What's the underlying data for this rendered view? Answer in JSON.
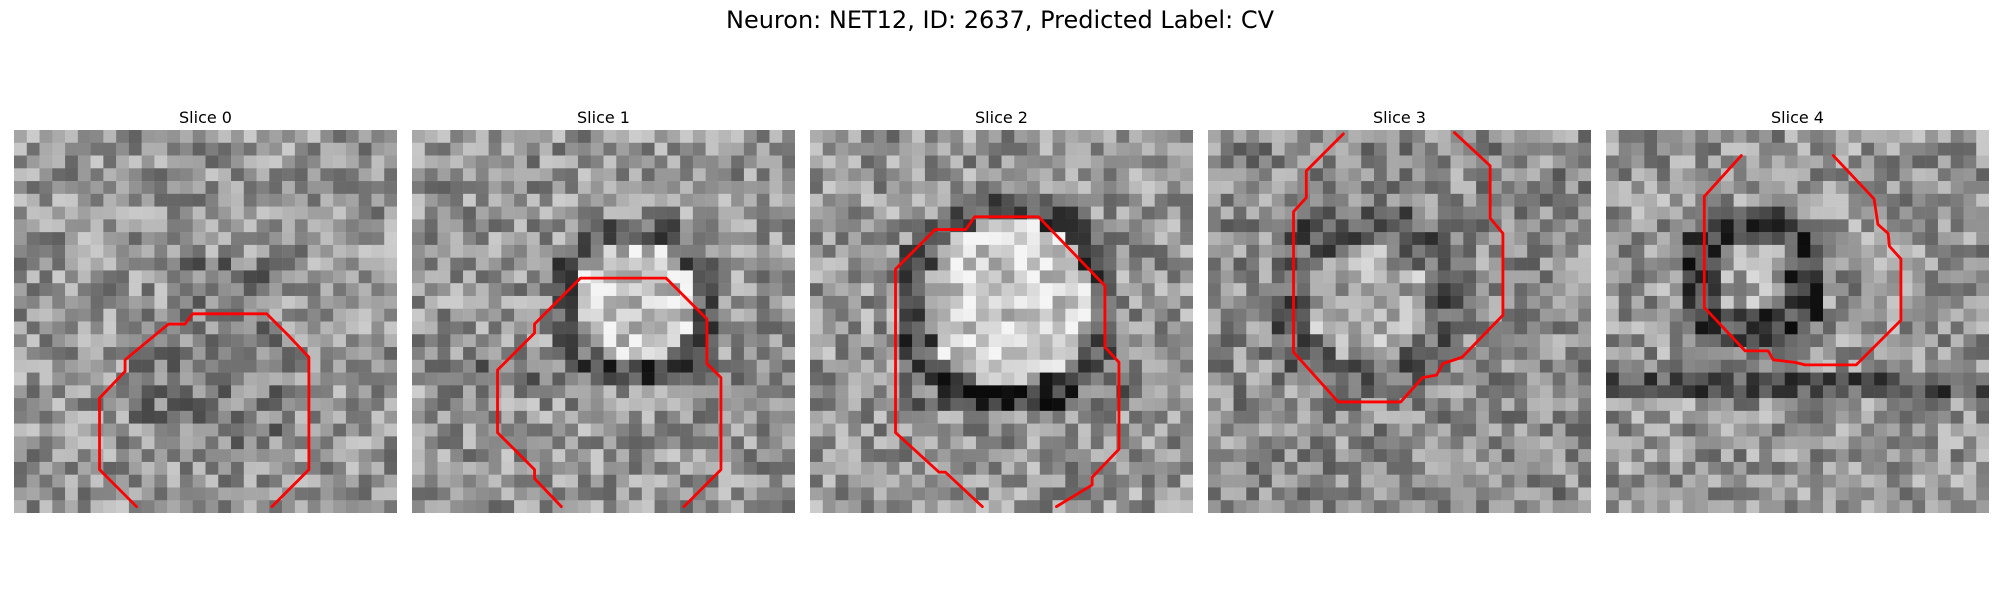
{
  "figure": {
    "title": "Neuron: NET12, ID: 2637, Predicted Label: CV"
  },
  "panels": [
    {
      "title": "Slice 0",
      "contour_color": "#ff0000"
    },
    {
      "title": "Slice 1",
      "contour_color": "#ff0000"
    },
    {
      "title": "Slice 2",
      "contour_color": "#ff0000"
    },
    {
      "title": "Slice 3",
      "contour_color": "#ff0000"
    },
    {
      "title": "Slice 4",
      "contour_color": "#ff0000"
    }
  ]
}
